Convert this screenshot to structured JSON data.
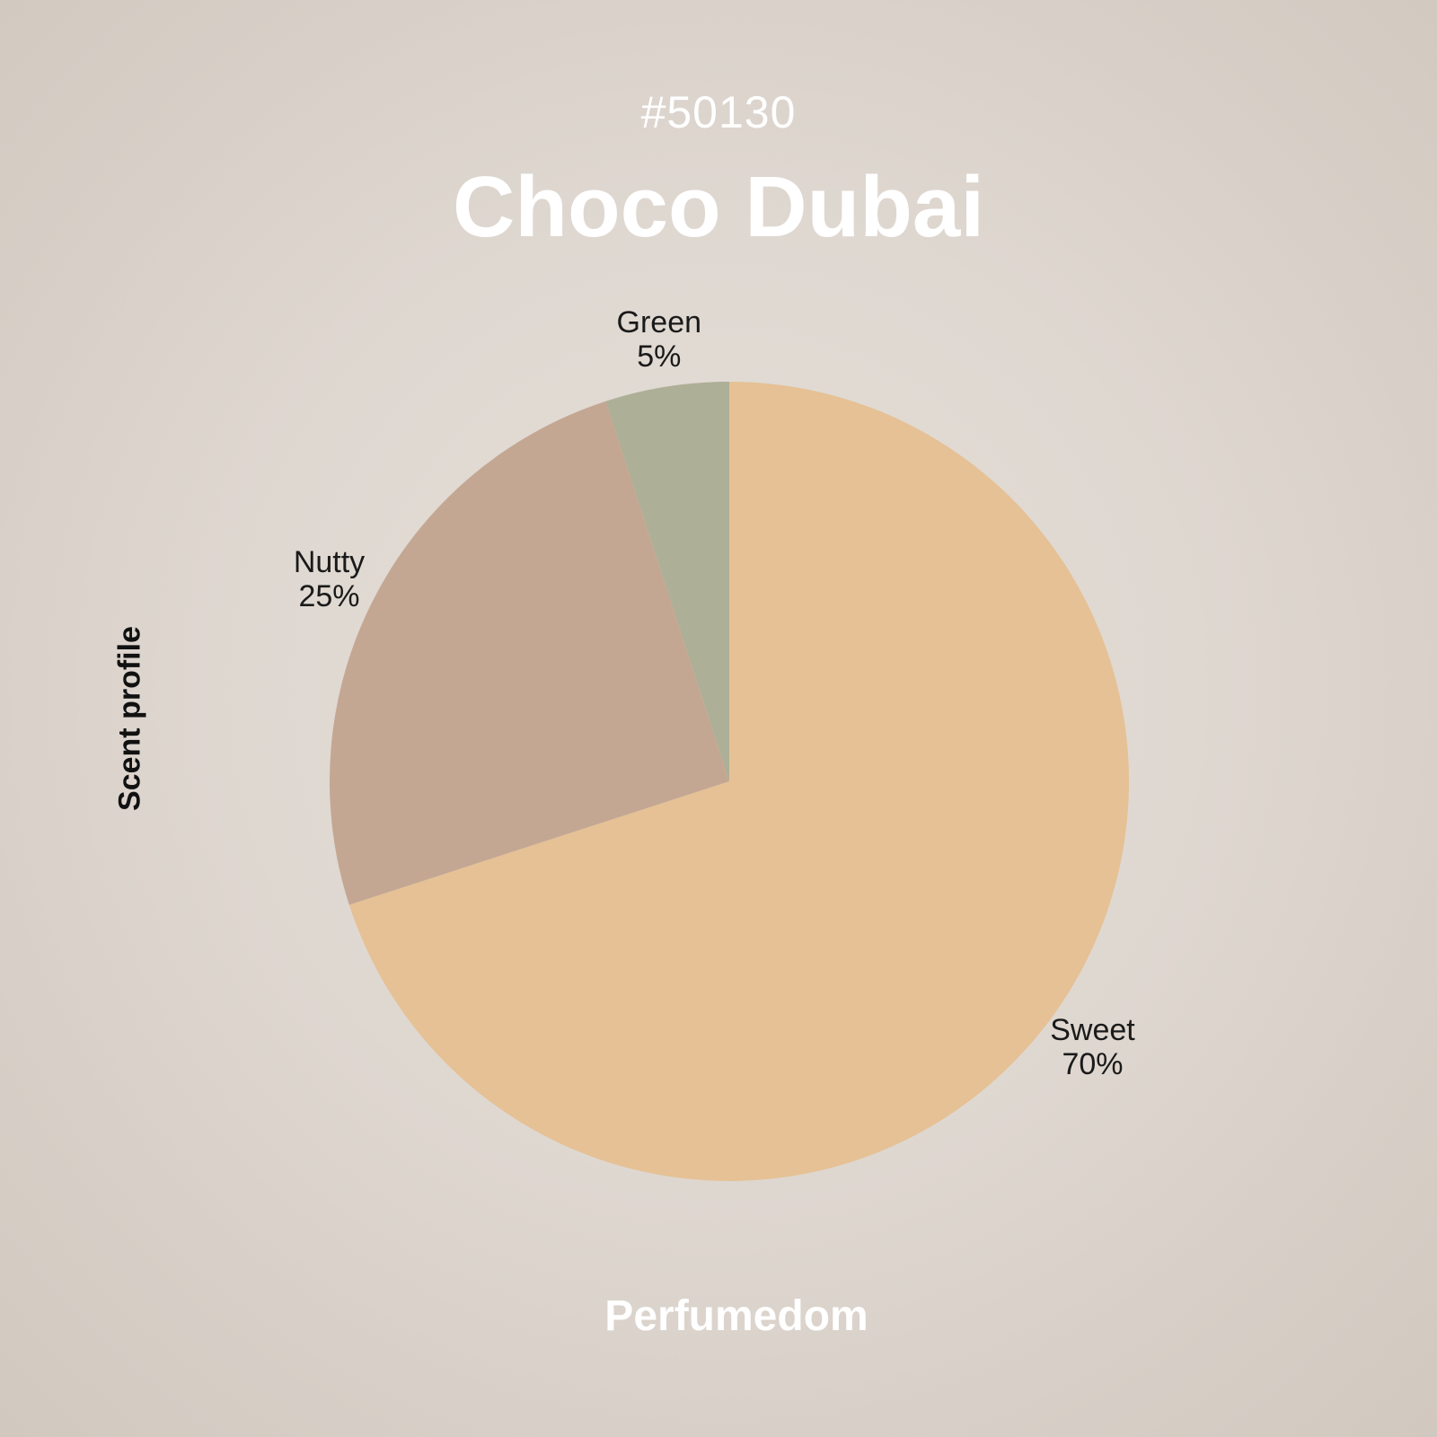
{
  "header": {
    "id_tag": "#50130",
    "title": "Choco Dubai"
  },
  "side_label": "Scent profile",
  "footer": {
    "brand": "Perfumedom"
  },
  "chart_data": {
    "type": "pie",
    "slices": [
      {
        "label": "Sweet",
        "value": 70,
        "display": "70%",
        "color": "#e5c195"
      },
      {
        "label": "Nutty",
        "value": 25,
        "display": "25%",
        "color": "#c4a793"
      },
      {
        "label": "Green",
        "value": 5,
        "display": "5%",
        "color": "#adaf96"
      }
    ],
    "start": "top",
    "direction": "clockwise"
  }
}
